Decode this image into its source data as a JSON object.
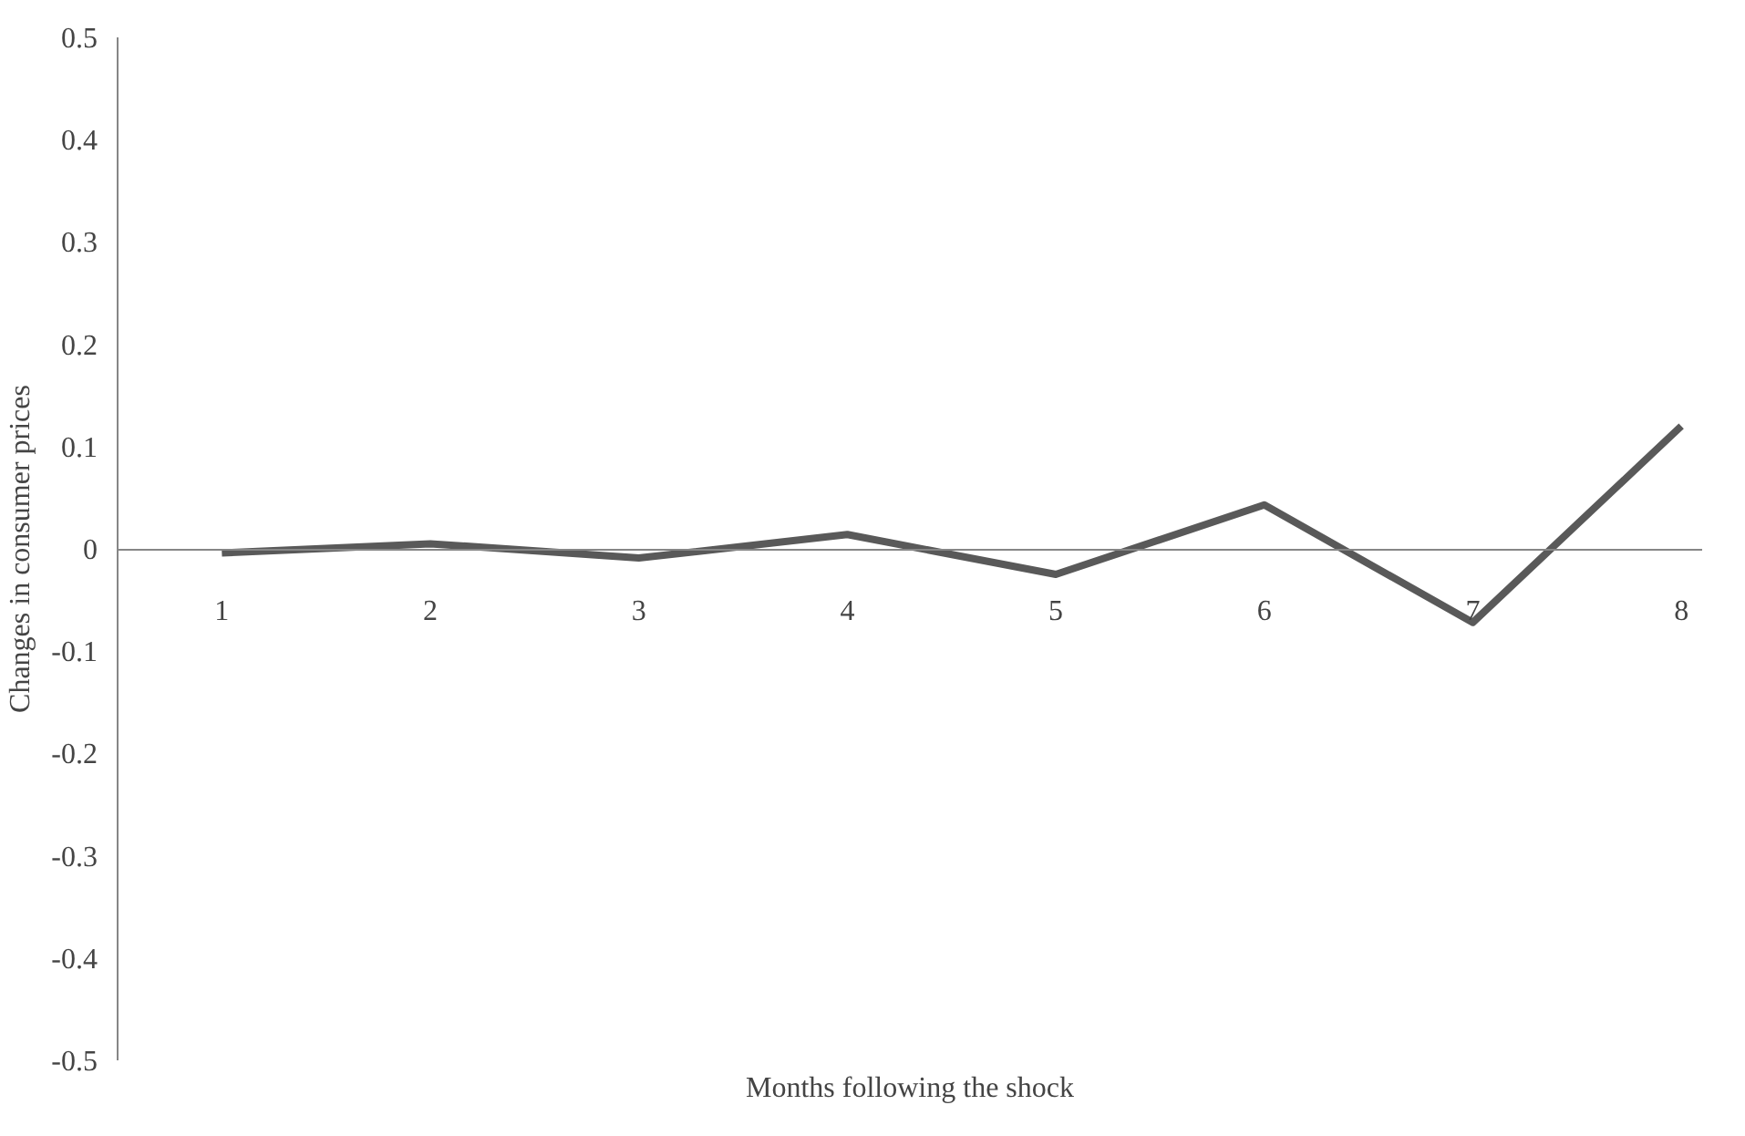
{
  "chart_data": {
    "type": "line",
    "xlabel": "Months following the shock",
    "ylabel": "Changes in consumer prices",
    "categories": [
      "1",
      "2",
      "3",
      "4",
      "5",
      "6",
      "7",
      "8"
    ],
    "series": [
      {
        "color": "#595959",
        "values": [
          -0.004,
          0.005,
          -0.009,
          0.014,
          -0.025,
          0.043,
          -0.072,
          0.12
        ]
      }
    ],
    "ylim": [
      -0.5,
      0.5
    ],
    "yticks": [
      0.5,
      0.4,
      0.3,
      0.2,
      0.1,
      0,
      -0.1,
      -0.2,
      -0.3,
      -0.4,
      -0.5
    ],
    "grid": false
  }
}
